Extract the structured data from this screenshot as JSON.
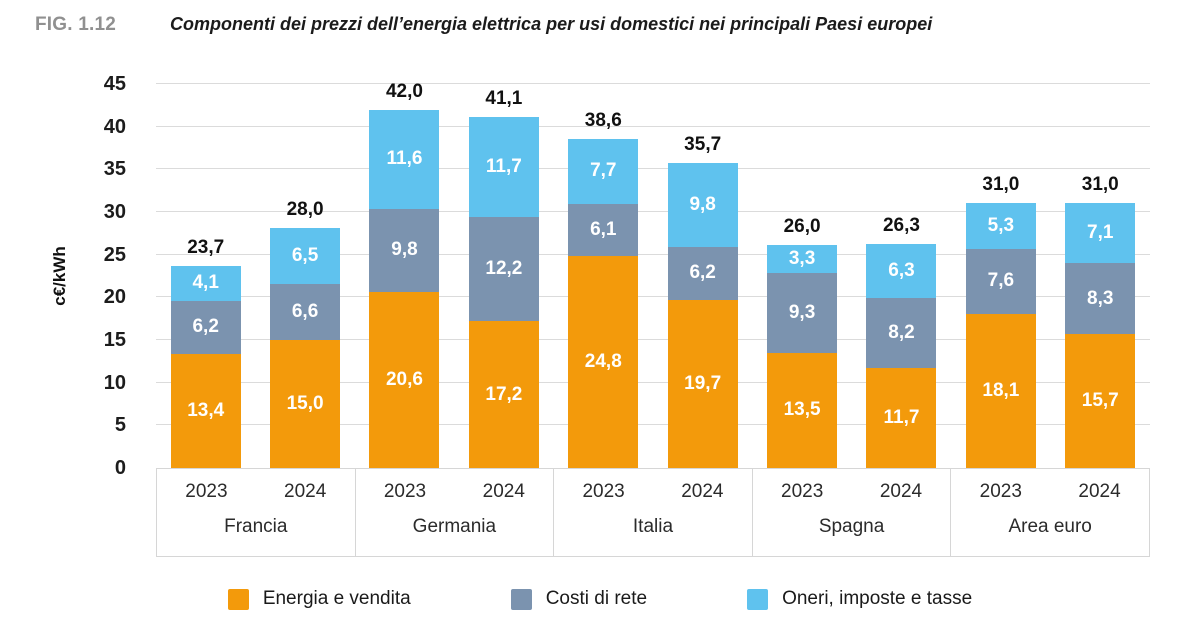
{
  "header": {
    "fig_label": "FIG. 1.12",
    "title": "Componenti dei prezzi dell’energia elettrica per usi domestici nei principali Paesi europei"
  },
  "colors": {
    "energia": "#F39A0B",
    "rete": "#7B93AF",
    "oneri": "#5FC2EE",
    "gridline": "#DBDBDB",
    "axis_border": "#D6D6D6",
    "fig_label_gray": "#909090"
  },
  "chart_data": {
    "type": "bar",
    "subtype": "stacked",
    "title": "Componenti dei prezzi dell’energia elettrica per usi domestici nei principali Paesi europei",
    "ylabel": "c€/kWh",
    "xlabel": "",
    "ylim": [
      0,
      45
    ],
    "ytick_step": 5,
    "grid": "horizontal",
    "legend_position": "bottom",
    "decimal_separator": ",",
    "series": [
      {
        "name": "Energia e vendita",
        "color": "#F39A0B"
      },
      {
        "name": "Costi di rete",
        "color": "#7B93AF"
      },
      {
        "name": "Oneri, imposte e tasse",
        "color": "#5FC2EE"
      }
    ],
    "groups": [
      {
        "label": "Francia",
        "bars": [
          {
            "year": "2023",
            "values": [
              13.4,
              6.2,
              4.1
            ],
            "total": 23.7
          },
          {
            "year": "2024",
            "values": [
              15.0,
              6.6,
              6.5
            ],
            "total": 28.0
          }
        ]
      },
      {
        "label": "Germania",
        "bars": [
          {
            "year": "2023",
            "values": [
              20.6,
              9.8,
              11.6
            ],
            "total": 42.0
          },
          {
            "year": "2024",
            "values": [
              17.2,
              12.2,
              11.7
            ],
            "total": 41.1
          }
        ]
      },
      {
        "label": "Italia",
        "bars": [
          {
            "year": "2023",
            "values": [
              24.8,
              6.1,
              7.7
            ],
            "total": 38.6
          },
          {
            "year": "2024",
            "values": [
              19.7,
              6.2,
              9.8
            ],
            "total": 35.7
          }
        ]
      },
      {
        "label": "Spagna",
        "bars": [
          {
            "year": "2023",
            "values": [
              13.5,
              9.3,
              3.3
            ],
            "total": 26.0
          },
          {
            "year": "2024",
            "values": [
              11.7,
              8.2,
              6.3
            ],
            "total": 26.3
          }
        ]
      },
      {
        "label": "Area euro",
        "bars": [
          {
            "year": "2023",
            "values": [
              18.1,
              7.6,
              5.3
            ],
            "total": 31.0
          },
          {
            "year": "2024",
            "values": [
              15.7,
              8.3,
              7.1
            ],
            "total": 31.0
          }
        ]
      }
    ]
  }
}
